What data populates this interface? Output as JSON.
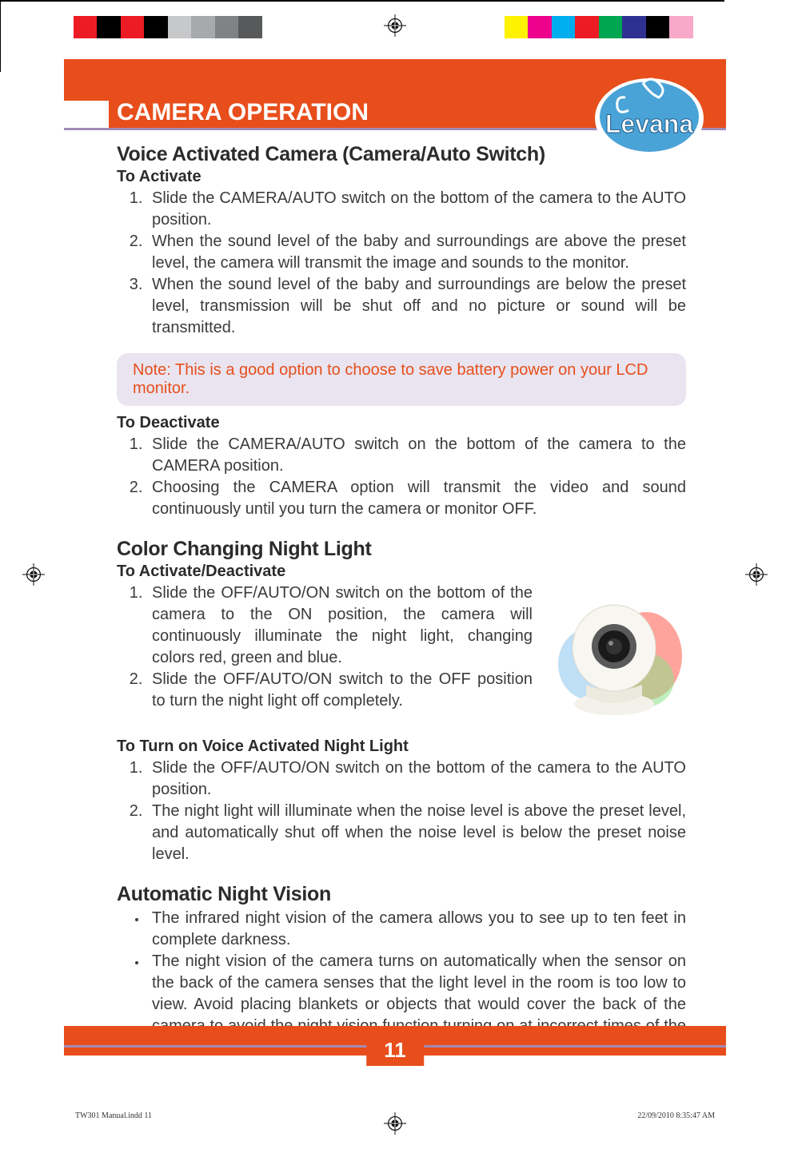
{
  "colorbars": {
    "left": [
      "#ed1c24",
      "#000000",
      "#ed1c24",
      "#000000",
      "#c7c8ca",
      "#a7a9ac",
      "#808285",
      "#58595b",
      "#ffffff"
    ],
    "right": [
      "#fff200",
      "#ec008c",
      "#00aeef",
      "#ed1c24",
      "#00a651",
      "#2e3192",
      "#000000",
      "#f8a8c8",
      "#ffffff"
    ]
  },
  "header": {
    "title": "CAMERA OPERATION",
    "logo_text": "Levana",
    "logo_colors": {
      "fill": "#4aa3d6",
      "outline": "#ffffff",
      "shadow": "#1c5a8a"
    }
  },
  "voice": {
    "heading": "Voice Activated Camera (Camera/Auto Switch)",
    "activate_label": "To Activate",
    "activate_items": [
      "Slide the CAMERA/AUTO switch on the bottom of the camera to the AUTO position.",
      "When the sound level of the baby and surroundings are above the preset level, the camera will transmit the image and sounds to the monitor.",
      "When the sound level of the baby and surroundings are below the preset level, transmission will be shut off and no picture or sound will be transmitted."
    ],
    "note": "Note:   This is a good option to choose to save battery power on your LCD monitor.",
    "deactivate_label": "To Deactivate",
    "deactivate_items": [
      "Slide the CAMERA/AUTO switch on the bottom of the camera to the CAMERA position.",
      "Choosing the CAMERA option will transmit the video and sound continuously until you turn the camera or monitor OFF."
    ]
  },
  "nightlight": {
    "heading": "Color Changing Night Light",
    "toggle_label": "To Activate/Deactivate",
    "toggle_items": [
      "Slide the OFF/AUTO/ON switch on the bottom of the camera to the ON position, the camera will continuously illuminate the night light, changing colors red, green and blue.",
      "Slide the OFF/AUTO/ON switch to the OFF position to turn the night light off completely."
    ],
    "voice_label": "To Turn on Voice Activated Night Light",
    "voice_items": [
      "Slide the OFF/AUTO/ON switch on the bottom of the camera to the AUTO position.",
      "The night light will illuminate when the noise level is above the preset level, and automatically shut off when the noise level is below the preset noise level."
    ]
  },
  "nightvision": {
    "heading": "Automatic Night Vision",
    "items": [
      "The infrared night vision of the camera allows you to see up to ten feet in complete darkness.",
      "The night vision of the camera turns on automatically when the sensor on the back of the camera senses that the light level in the room is too low to view. Avoid placing blankets or objects that would cover the back of the camera to avoid the night vision function turning on at incorrect times of the day"
    ]
  },
  "footer": {
    "page_number": "11",
    "slug_left": "TW301 Manual.indd   11",
    "slug_right": "22/09/2010   8:35:47 AM"
  },
  "camera_illustration": {
    "body_color": "#f8f6f0",
    "lens_outer": "#5a5a5a",
    "lens_inner": "#1a1a1a",
    "glow_red": "#ff5a4a",
    "glow_green": "#8de08a",
    "glow_blue": "#6fb8e8"
  }
}
